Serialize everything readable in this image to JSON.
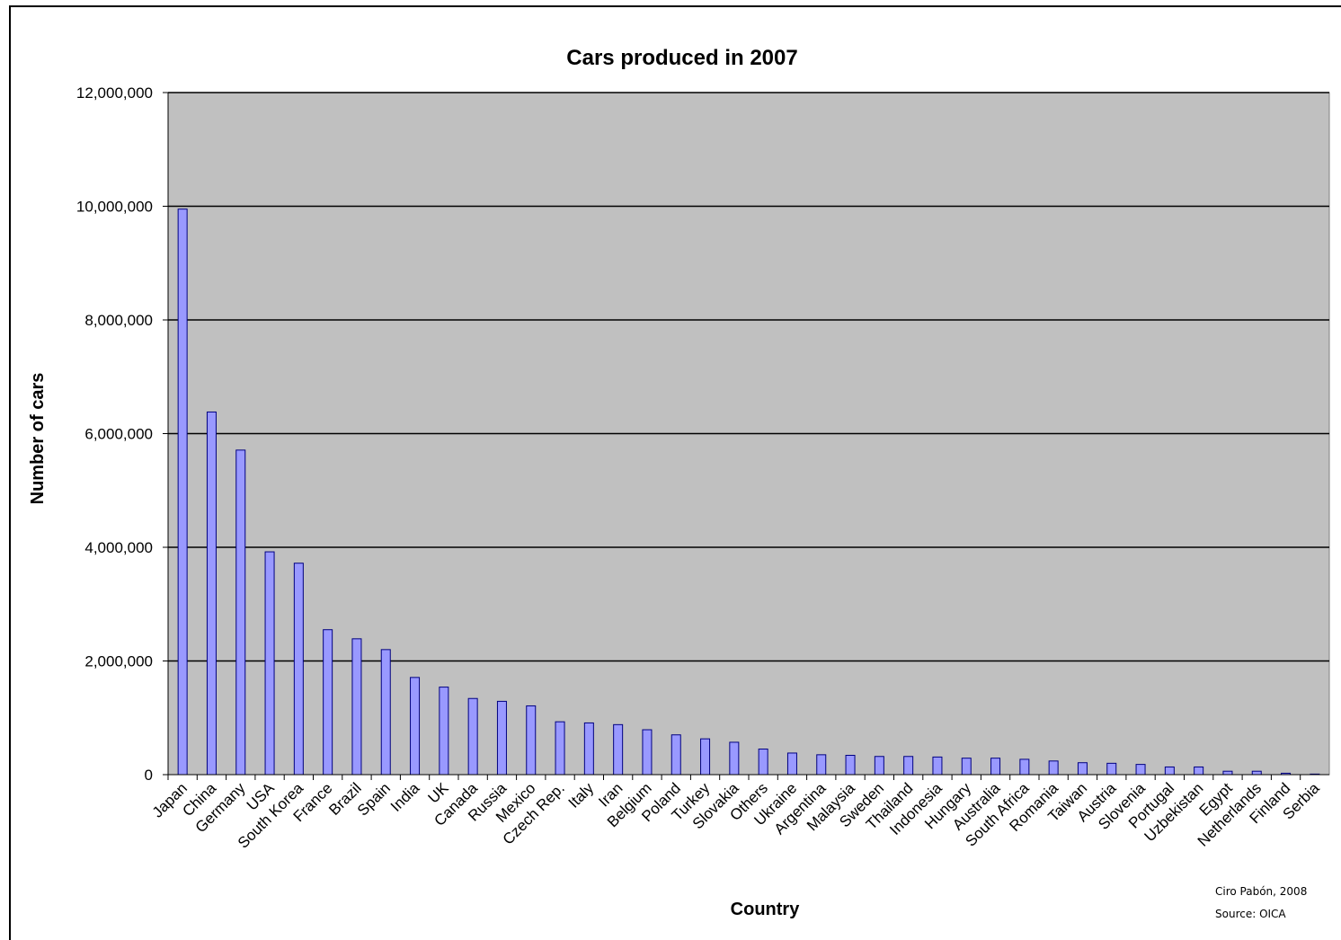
{
  "chart_data": {
    "type": "bar",
    "title": "Cars produced in 2007",
    "xlabel": "Country",
    "ylabel": "Number of cars",
    "ylim": [
      0,
      12000000
    ],
    "yticks": [
      0,
      2000000,
      4000000,
      6000000,
      8000000,
      10000000,
      12000000
    ],
    "ytick_labels": [
      "0",
      "2,000,000",
      "4,000,000",
      "6,000,000",
      "8,000,000",
      "10,000,000",
      "12,000,000"
    ],
    "grid": true,
    "legend": "none",
    "categories": [
      "Japan",
      "China",
      "Germany",
      "USA",
      "South Korea",
      "France",
      "Brazil",
      "Spain",
      "India",
      "UK",
      "Canada",
      "Russia",
      "Mexico",
      "Czech Rep.",
      "Italy",
      "Iran",
      "Belgium",
      "Poland",
      "Turkey",
      "Slovakia",
      "Others",
      "Ukraine",
      "Argentina",
      "Malaysia",
      "Sweden",
      "Thailand",
      "Indonesia",
      "Hungary",
      "Australia",
      "South Africa",
      "Romania",
      "Taiwan",
      "Austria",
      "Slovenia",
      "Portugal",
      "Uzbekistan",
      "Egypt",
      "Netherlands",
      "Finland",
      "Serbia"
    ],
    "values": [
      9950000,
      6380000,
      5710000,
      3920000,
      3720000,
      2550000,
      2390000,
      2200000,
      1710000,
      1540000,
      1340000,
      1290000,
      1210000,
      930000,
      910000,
      880000,
      790000,
      700000,
      630000,
      570000,
      450000,
      380000,
      350000,
      340000,
      320000,
      320000,
      310000,
      290000,
      290000,
      270000,
      240000,
      210000,
      200000,
      180000,
      135000,
      135000,
      60000,
      60000,
      25000,
      10000
    ],
    "colors": {
      "bar": "#9999ff",
      "bar_stroke": "#000080",
      "plot_bg": "#c0c0c0",
      "grid": "#000000"
    }
  },
  "credits": {
    "author": "Ciro Pabón, 2008",
    "source": "Source: OICA"
  }
}
